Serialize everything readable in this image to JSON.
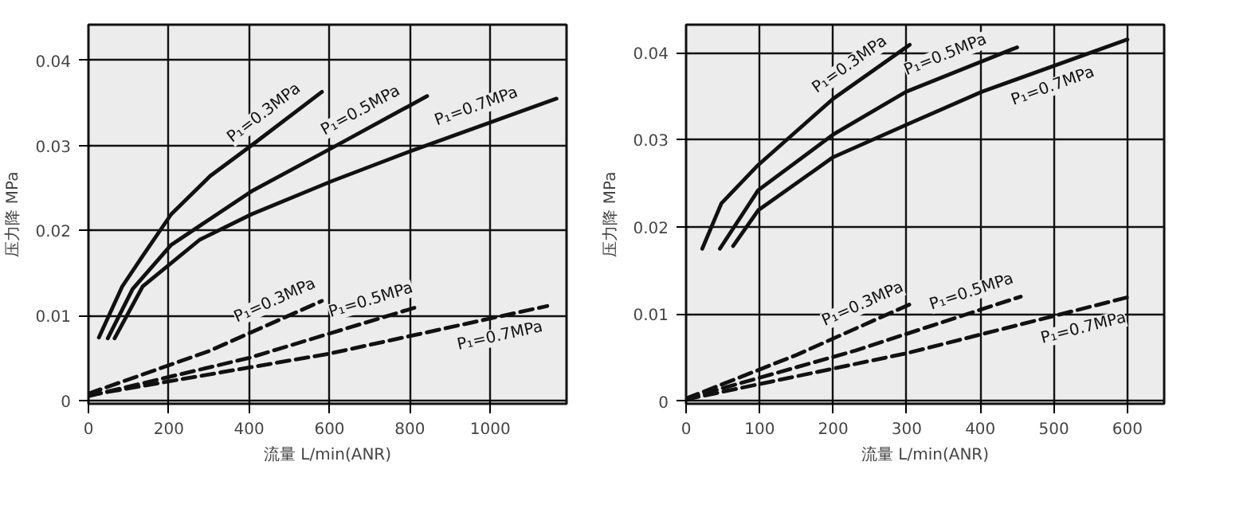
{
  "chart_data": [
    {
      "type": "line",
      "xlabel": "流量 L/min(ANR)",
      "ylabel": "压力降 MPa",
      "xlim": [
        0,
        1190
      ],
      "ylim": [
        -0.0004,
        0.0442
      ],
      "xticks": [
        0,
        200,
        400,
        600,
        800,
        1000
      ],
      "yticks": [
        0,
        0.01,
        0.02,
        0.03,
        0.04
      ],
      "grid": true,
      "series": [
        {
          "name": "P₁=0.3MPa",
          "color": "#111111",
          "line_style": "solid",
          "x": [
            26,
            84,
            135,
            206,
            303,
            406,
            581
          ],
          "values": [
            0.0074,
            0.0134,
            0.017,
            0.0219,
            0.0264,
            0.03,
            0.0363
          ]
        },
        {
          "name": "P₁=0.5MPa",
          "color": "#111111",
          "line_style": "solid",
          "x": [
            48,
            110,
            206,
            406,
            606,
            843
          ],
          "values": [
            0.0073,
            0.0131,
            0.0183,
            0.0246,
            0.0297,
            0.0358
          ]
        },
        {
          "name": "P₁=0.7MPa",
          "color": "#111111",
          "line_style": "solid",
          "x": [
            65,
            135,
            277,
            406,
            606,
            806,
            1165
          ],
          "values": [
            0.0073,
            0.0134,
            0.0189,
            0.0219,
            0.0258,
            0.0294,
            0.0355
          ]
        },
        {
          "name": "P₁=0.3MPa",
          "color": "#111111",
          "line_style": "dashed",
          "x": [
            0,
            300,
            581
          ],
          "values": [
            0.0008,
            0.0058,
            0.0117
          ]
        },
        {
          "name": "P₁=0.5MPa",
          "color": "#111111",
          "line_style": "dashed",
          "x": [
            0,
            400,
            826
          ],
          "values": [
            0.0005,
            0.005,
            0.0111
          ]
        },
        {
          "name": "P₁=0.7MPa",
          "color": "#111111",
          "line_style": "dashed",
          "x": [
            0,
            600,
            1142
          ],
          "values": [
            0.0006,
            0.0055,
            0.0111
          ]
        }
      ]
    },
    {
      "type": "line",
      "xlabel": "流量 L/min(ANR)",
      "ylabel": "压力降 MPa",
      "xlim": [
        0,
        650
      ],
      "ylim": [
        -0.0003,
        0.0432
      ],
      "xticks": [
        0,
        100,
        200,
        300,
        400,
        500,
        600
      ],
      "yticks": [
        0,
        0.01,
        0.02,
        0.03,
        0.04
      ],
      "grid": true,
      "series": [
        {
          "name": "P₁=0.3MPa",
          "color": "#111111",
          "line_style": "solid",
          "x": [
            22,
            48,
            98,
            200,
            304
          ],
          "values": [
            0.0175,
            0.0227,
            0.0271,
            0.0347,
            0.0409
          ]
        },
        {
          "name": "P₁=0.5MPa",
          "color": "#111111",
          "line_style": "solid",
          "x": [
            46,
            98,
            200,
            299,
            450
          ],
          "values": [
            0.0175,
            0.0242,
            0.0306,
            0.0355,
            0.0406
          ]
        },
        {
          "name": "P₁=0.7MPa",
          "color": "#111111",
          "line_style": "solid",
          "x": [
            64,
            98,
            200,
            299,
            402,
            600
          ],
          "values": [
            0.0178,
            0.0219,
            0.028,
            0.0317,
            0.0355,
            0.0415
          ]
        },
        {
          "name": "P₁=0.3MPa",
          "color": "#111111",
          "line_style": "dashed",
          "x": [
            0,
            150,
            304
          ],
          "values": [
            0.0003,
            0.0053,
            0.0111
          ]
        },
        {
          "name": "P₁=0.5MPa",
          "color": "#111111",
          "line_style": "dashed",
          "x": [
            0,
            230,
            455
          ],
          "values": [
            0.0003,
            0.0058,
            0.012
          ]
        },
        {
          "name": "P₁=0.7MPa",
          "color": "#111111",
          "line_style": "dashed",
          "x": [
            0,
            300,
            604
          ],
          "values": [
            0.0002,
            0.0055,
            0.012
          ]
        }
      ]
    }
  ]
}
